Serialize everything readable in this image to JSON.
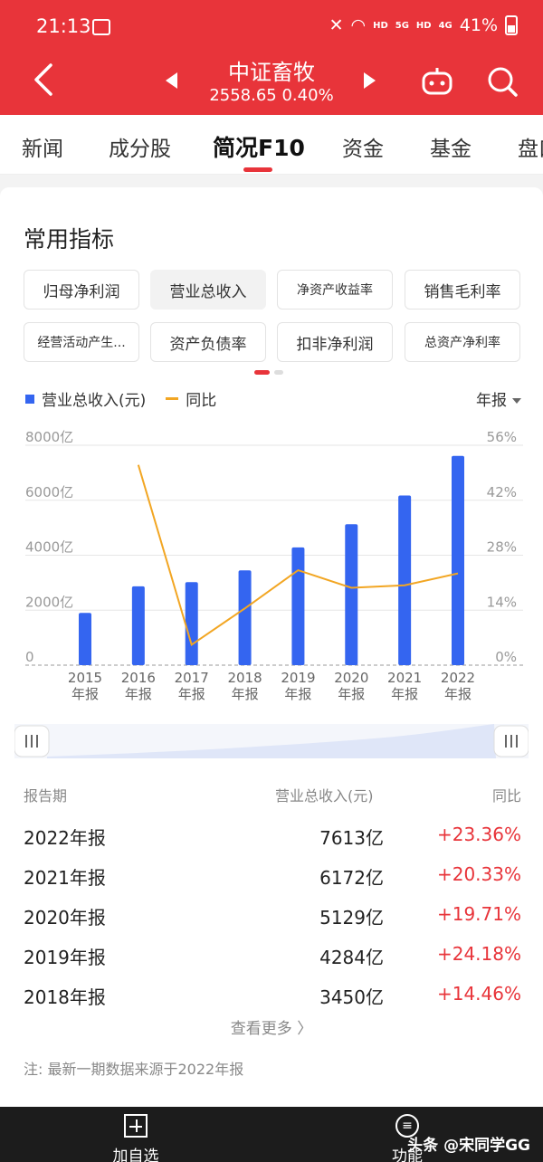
{
  "status_bar": {
    "time": "21:13",
    "hd1": "HD",
    "net1": "5G",
    "hd2": "HD",
    "net2": "4G",
    "battery": "41%"
  },
  "header": {
    "title": "中证畜牧",
    "subtitle": "2558.65 0.40%"
  },
  "tabs": [
    {
      "label": "新闻"
    },
    {
      "label": "成分股"
    },
    {
      "label": "简况F10"
    },
    {
      "label": "资金"
    },
    {
      "label": "基金"
    },
    {
      "label": "盘口"
    }
  ],
  "indicators": {
    "title": "常用指标",
    "items": [
      {
        "label": "归母净利润"
      },
      {
        "label": "营业总收入"
      },
      {
        "label": "净资产收益率"
      },
      {
        "label": "销售毛利率"
      },
      {
        "label": "经营活动产生..."
      },
      {
        "label": "资产负债率"
      },
      {
        "label": "扣非净利润"
      },
      {
        "label": "总资产净利率"
      }
    ]
  },
  "legend": {
    "bar_label": "营业总收入(元)",
    "line_label": "同比",
    "period": "年报"
  },
  "chart_data": {
    "type": "bar",
    "categories": [
      "2015",
      "2016",
      "2017",
      "2018",
      "2019",
      "2020",
      "2021",
      "2022"
    ],
    "category_suffix": "年报",
    "series": [
      {
        "name": "营业总收入(元)",
        "type": "bar",
        "unit": "亿",
        "values": [
          1900,
          2870,
          3020,
          3450,
          4284,
          5129,
          6172,
          7613
        ]
      },
      {
        "name": "同比",
        "type": "line",
        "unit": "%",
        "values": [
          null,
          51.0,
          5.2,
          14.46,
          24.18,
          19.71,
          20.33,
          23.36
        ]
      }
    ],
    "left_axis": {
      "ticks": [
        "0",
        "2000亿",
        "4000亿",
        "6000亿",
        "8000亿"
      ],
      "tick_values": [
        0,
        2000,
        4000,
        6000,
        8000
      ],
      "ylim": [
        0,
        8000
      ]
    },
    "right_axis": {
      "ticks": [
        "0%",
        "14%",
        "28%",
        "42%",
        "56%"
      ],
      "tick_values": [
        0,
        14,
        28,
        42,
        56
      ],
      "ylim": [
        0,
        56
      ]
    },
    "colors": {
      "bar": "#3465f0",
      "line": "#f2a623",
      "grid": "#e6e6e6"
    },
    "grid": true
  },
  "table": {
    "headers": {
      "period": "报告期",
      "revenue": "营业总收入(元)",
      "yoy": "同比"
    },
    "rows": [
      {
        "period": "2022年报",
        "revenue": "7613亿",
        "yoy": "+23.36%"
      },
      {
        "period": "2021年报",
        "revenue": "6172亿",
        "yoy": "+20.33%"
      },
      {
        "period": "2020年报",
        "revenue": "5129亿",
        "yoy": "+19.71%"
      },
      {
        "period": "2019年报",
        "revenue": "4284亿",
        "yoy": "+24.18%"
      },
      {
        "period": "2018年报",
        "revenue": "3450亿",
        "yoy": "+14.46%"
      }
    ],
    "more": "查看更多 〉"
  },
  "note": "注: 最新一期数据来源于2022年报",
  "bottom_bar": {
    "add_label": "加自选",
    "func_label": "功能",
    "watermark": "头条 @宋同学GG"
  }
}
